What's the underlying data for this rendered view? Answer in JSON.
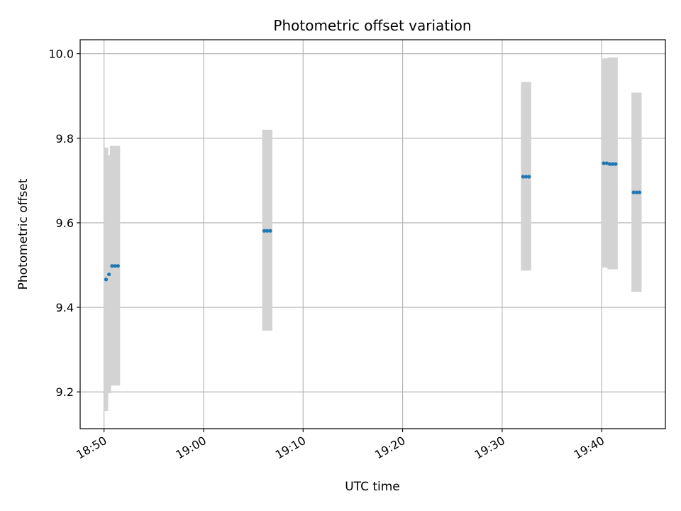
{
  "chart_data": {
    "type": "scatter",
    "title": "Photometric offset variation",
    "xlabel": "UTC time",
    "ylabel": "Photometric offset",
    "x_ticks": [
      "18:50",
      "19:00",
      "19:10",
      "19:20",
      "19:30",
      "19:40"
    ],
    "y_ticks": [
      "9.2",
      "9.4",
      "9.6",
      "9.8",
      "10.0"
    ],
    "xlim": [
      "18:47:36",
      "19:46:24"
    ],
    "ylim": [
      9.113,
      10.033
    ],
    "grid": true,
    "colors": {
      "points": "#1f77b4",
      "error_bars": "#d3d3d3",
      "grid": "#b0b0b0"
    },
    "series": [
      {
        "points": [
          {
            "x": "18:50:12",
            "y": 9.466,
            "low": 9.155,
            "high": 9.778
          },
          {
            "x": "18:50:30",
            "y": 9.478,
            "low": 9.197,
            "high": 9.76
          },
          {
            "x": "18:50:48",
            "y": 9.498,
            "low": 9.215,
            "high": 9.782
          },
          {
            "x": "18:51:06",
            "y": 9.498,
            "low": 9.215,
            "high": 9.782
          },
          {
            "x": "18:51:24",
            "y": 9.498,
            "low": 9.215,
            "high": 9.782
          },
          {
            "x": "19:06:06",
            "y": 9.581,
            "low": 9.345,
            "high": 9.82
          },
          {
            "x": "19:06:24",
            "y": 9.581,
            "low": 9.345,
            "high": 9.82
          },
          {
            "x": "19:06:42",
            "y": 9.581,
            "low": 9.345,
            "high": 9.82
          },
          {
            "x": "19:32:06",
            "y": 9.709,
            "low": 9.487,
            "high": 9.933
          },
          {
            "x": "19:32:24",
            "y": 9.709,
            "low": 9.487,
            "high": 9.933
          },
          {
            "x": "19:32:42",
            "y": 9.709,
            "low": 9.487,
            "high": 9.933
          },
          {
            "x": "19:40:12",
            "y": 9.741,
            "low": 9.494,
            "high": 9.989
          },
          {
            "x": "19:40:30",
            "y": 9.741,
            "low": 9.494,
            "high": 9.989
          },
          {
            "x": "19:40:48",
            "y": 9.739,
            "low": 9.49,
            "high": 9.991
          },
          {
            "x": "19:41:06",
            "y": 9.739,
            "low": 9.49,
            "high": 9.991
          },
          {
            "x": "19:41:24",
            "y": 9.739,
            "low": 9.49,
            "high": 9.991
          },
          {
            "x": "19:43:12",
            "y": 9.672,
            "low": 9.437,
            "high": 9.908
          },
          {
            "x": "19:43:30",
            "y": 9.672,
            "low": 9.437,
            "high": 9.908
          },
          {
            "x": "19:43:48",
            "y": 9.672,
            "low": 9.437,
            "high": 9.908
          }
        ]
      }
    ]
  }
}
